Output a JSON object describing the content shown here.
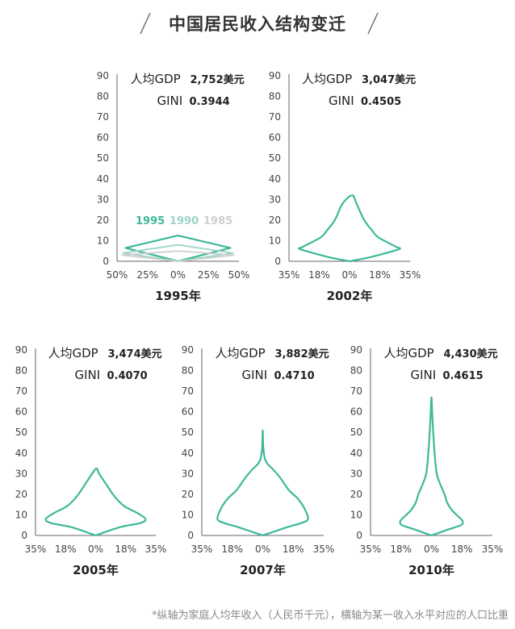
{
  "title": "中国居民收入结构变迁",
  "footnote": "*纵轴为家庭人均年收入（人民币千元），横轴为某一收入水平对应的人口比重",
  "colors": {
    "main": "#3db89a",
    "y1990": "#9bd5c6",
    "y1985": "#cfcfcf",
    "axis": "#666666",
    "text": "#222222"
  },
  "chart_data": [
    {
      "type": "area",
      "xlabel": "1995年",
      "gdp_label": "人均GDP",
      "gdp_value": "2,752美元",
      "gini_label": "GINI",
      "gini_value": "0.3944",
      "ylim": [
        0,
        90
      ],
      "y_ticks": [
        "0",
        "10",
        "20",
        "30",
        "40",
        "50",
        "60",
        "70",
        "80",
        "90"
      ],
      "x_ticks": [
        "50%",
        "25%",
        "0%",
        "25%",
        "50%"
      ],
      "xlim": 50,
      "legend": [
        "1995",
        "1990",
        "1985"
      ],
      "series": [
        {
          "name": "1995",
          "shape": "diamond",
          "width": 43,
          "width_y": 6.5,
          "top": 12.5
        },
        {
          "name": "1990",
          "shape": "diamond",
          "width": 45,
          "width_y": 4,
          "top": 8
        },
        {
          "name": "1985",
          "shape": "diamond",
          "width": 46,
          "width_y": 3,
          "top": 5
        }
      ]
    },
    {
      "type": "area",
      "xlabel": "2002年",
      "gdp_label": "人均GDP",
      "gdp_value": "3,047美元",
      "gini_label": "GINI",
      "gini_value": "0.4505",
      "ylim": [
        0,
        90
      ],
      "y_ticks": [
        "0",
        "10",
        "20",
        "30",
        "40",
        "50",
        "60",
        "70",
        "80",
        "90"
      ],
      "x_ticks": [
        "35%",
        "18%",
        "0%",
        "18%",
        "35%"
      ],
      "xlim": 35,
      "series": [
        {
          "name": "2002",
          "profile": [
            [
              0,
              0
            ],
            [
              2,
              12
            ],
            [
              4,
              21
            ],
            [
              6,
              29
            ],
            [
              7,
              27
            ],
            [
              10,
              20
            ],
            [
              12,
              16
            ],
            [
              15,
              13
            ],
            [
              20,
              8.5
            ],
            [
              28,
              4
            ],
            [
              32,
              1.5
            ]
          ]
        }
      ]
    },
    {
      "type": "area",
      "xlabel": "2005年",
      "gdp_label": "人均GDP",
      "gdp_value": "3,474美元",
      "gini_label": "GINI",
      "gini_value": "0.4070",
      "ylim": [
        0,
        90
      ],
      "y_ticks": [
        "0",
        "10",
        "20",
        "30",
        "40",
        "50",
        "60",
        "70",
        "80",
        "90"
      ],
      "x_ticks": [
        "35%",
        "18%",
        "0%",
        "18%",
        "35%"
      ],
      "xlim": 35,
      "series": [
        {
          "name": "2005",
          "profile": [
            [
              0,
              0
            ],
            [
              4,
              14
            ],
            [
              6,
              26
            ],
            [
              8,
              29
            ],
            [
              11,
              24
            ],
            [
              14,
              17
            ],
            [
              17,
              13
            ],
            [
              20,
              10
            ],
            [
              25,
              6
            ],
            [
              30,
              2
            ],
            [
              32.5,
              0.5
            ]
          ]
        }
      ]
    },
    {
      "type": "area",
      "xlabel": "2007年",
      "gdp_label": "人均GDP",
      "gdp_value": "3,882美元",
      "gini_label": "GINI",
      "gini_value": "0.4710",
      "ylim": [
        0,
        90
      ],
      "y_ticks": [
        "0",
        "10",
        "20",
        "30",
        "40",
        "50",
        "60",
        "70",
        "80",
        "90"
      ],
      "x_ticks": [
        "35%",
        "18%",
        "0%",
        "18%",
        "35%"
      ],
      "xlim": 35,
      "series": [
        {
          "name": "2007",
          "profile": [
            [
              0,
              0
            ],
            [
              4,
              14
            ],
            [
              6,
              22
            ],
            [
              8,
              26
            ],
            [
              13,
              24
            ],
            [
              18,
              20
            ],
            [
              22,
              15
            ],
            [
              28,
              10
            ],
            [
              32,
              6
            ],
            [
              35,
              2.5
            ],
            [
              38,
              1
            ],
            [
              43,
              0.3
            ],
            [
              51,
              0
            ]
          ]
        }
      ]
    },
    {
      "type": "area",
      "xlabel": "2010年",
      "gdp_label": "人均GDP",
      "gdp_value": "4,430美元",
      "gini_label": "GINI",
      "gini_value": "0.4615",
      "ylim": [
        0,
        90
      ],
      "y_ticks": [
        "0",
        "10",
        "20",
        "30",
        "40",
        "50",
        "60",
        "70",
        "80",
        "90"
      ],
      "x_ticks": [
        "35%",
        "18%",
        "0%",
        "18%",
        "35%"
      ],
      "xlim": 35,
      "series": [
        {
          "name": "2010",
          "profile": [
            [
              0,
              0
            ],
            [
              3,
              10
            ],
            [
              5,
              17
            ],
            [
              6.5,
              18
            ],
            [
              8,
              17
            ],
            [
              12,
              12
            ],
            [
              16,
              9
            ],
            [
              20,
              7.5
            ],
            [
              25,
              5
            ],
            [
              30,
              3
            ],
            [
              40,
              1.8
            ],
            [
              50,
              1
            ],
            [
              58,
              0.5
            ],
            [
              67,
              0
            ]
          ]
        }
      ]
    }
  ]
}
